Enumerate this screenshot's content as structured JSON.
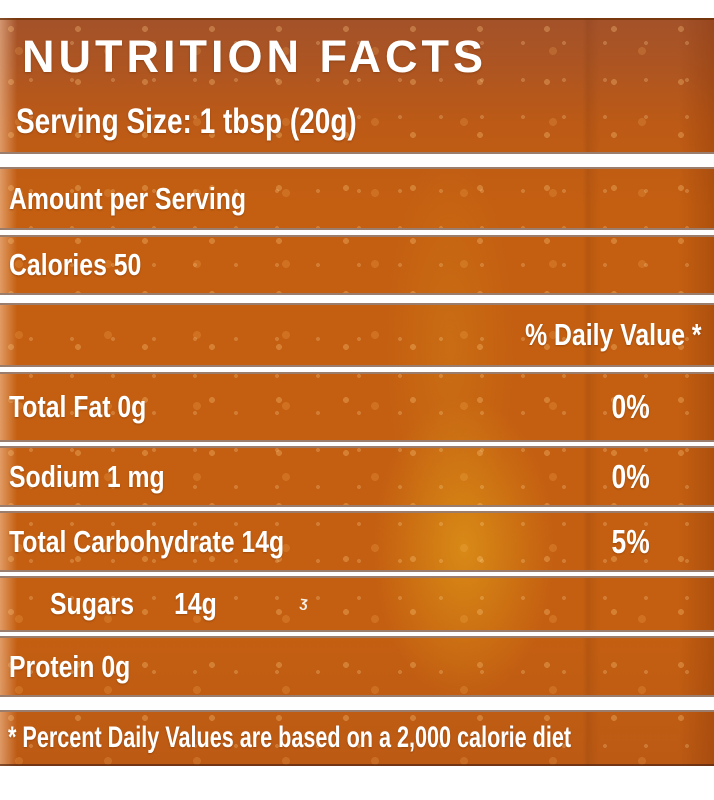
{
  "label": {
    "title": "NUTRITION FACTS",
    "serving_size": "Serving Size: 1 tbsp (20g)",
    "amount_per_serving": "Amount per Serving",
    "calories": "Calories 50",
    "daily_value_header": "% Daily Value *",
    "rows": [
      {
        "name": "Total Fat 0g",
        "daily_value": "0%"
      },
      {
        "name": "Sodium 1 mg",
        "daily_value": "0%"
      },
      {
        "name": "Total Carbohydrate 14g",
        "daily_value": "5%"
      },
      {
        "name": "Sugars",
        "amount": "14g",
        "daily_value": ""
      },
      {
        "name": "Protein 0g",
        "daily_value": ""
      }
    ],
    "footnote": "* Percent Daily Values are based on a 2,000 calorie diet",
    "artifact_mark": "ʒ",
    "colors": {
      "jar_orange": "#c45f11",
      "jar_orange_dark_top": "#a4522a",
      "honey_gold": "#cd8614",
      "divider_white": "#fefefe",
      "print_white": "#ffffff",
      "print_edge_line": "#56260a"
    }
  }
}
